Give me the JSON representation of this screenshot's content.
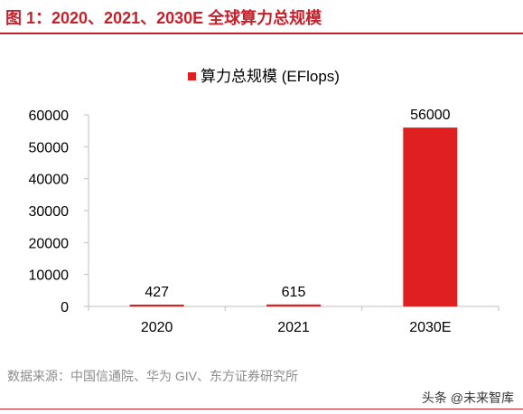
{
  "figure": {
    "title": "图 1：2020、2021、2030E 全球算力总规模",
    "source": "数据来源：中国信通院、华为 GIV、东方证券研究所",
    "watermark": "头条 @未来智库"
  },
  "colors": {
    "accent": "#c8202a",
    "bar": "#e02020",
    "axis": "#bfbfbf",
    "text": "#000000"
  },
  "chart_data": {
    "type": "bar",
    "categories": [
      "2020",
      "2021",
      "2030E"
    ],
    "series": [
      {
        "name": "算力总规模 (EFlops)",
        "values": [
          427,
          615,
          56000
        ]
      }
    ],
    "data_labels": [
      "427",
      "615",
      "56000"
    ],
    "yticks": [
      "0",
      "10000",
      "20000",
      "30000",
      "40000",
      "50000",
      "60000"
    ],
    "ylim": [
      0,
      60000
    ],
    "legend_position": "top-center",
    "grid": false
  }
}
